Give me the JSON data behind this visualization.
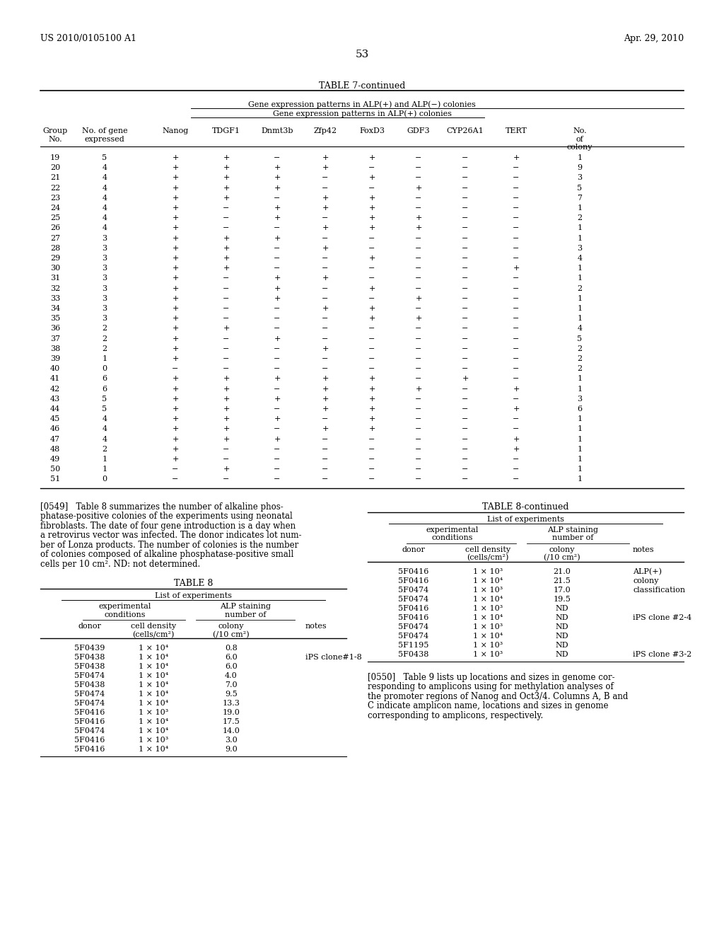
{
  "header_left": "US 2010/0105100 A1",
  "header_right": "Apr. 29, 2010",
  "page_number": "53",
  "table7_title": "TABLE 7-continued",
  "table7_subtitle1": "Gene expression patterns in ALP(+) and ALP(−) colonies",
  "table7_subtitle2": "Gene expression patterns in ALP(+) colonies",
  "table7_data": [
    [
      "19",
      "5",
      "+",
      "+",
      "−",
      "+",
      "+",
      "−",
      "−",
      "+",
      "1"
    ],
    [
      "20",
      "4",
      "+",
      "+",
      "+",
      "+",
      "−",
      "−",
      "−",
      "−",
      "9"
    ],
    [
      "21",
      "4",
      "+",
      "+",
      "+",
      "−",
      "+",
      "−",
      "−",
      "−",
      "3"
    ],
    [
      "22",
      "4",
      "+",
      "+",
      "+",
      "−",
      "−",
      "+",
      "−",
      "−",
      "5"
    ],
    [
      "23",
      "4",
      "+",
      "+",
      "−",
      "+",
      "+",
      "−",
      "−",
      "−",
      "7"
    ],
    [
      "24",
      "4",
      "+",
      "−",
      "+",
      "+",
      "+",
      "−",
      "−",
      "−",
      "1"
    ],
    [
      "25",
      "4",
      "+",
      "−",
      "+",
      "−",
      "+",
      "+",
      "−",
      "−",
      "2"
    ],
    [
      "26",
      "4",
      "+",
      "−",
      "−",
      "+",
      "+",
      "+",
      "−",
      "−",
      "1"
    ],
    [
      "27",
      "3",
      "+",
      "+",
      "+",
      "−",
      "−",
      "−",
      "−",
      "−",
      "1"
    ],
    [
      "28",
      "3",
      "+",
      "+",
      "−",
      "+",
      "−",
      "−",
      "−",
      "−",
      "3"
    ],
    [
      "29",
      "3",
      "+",
      "+",
      "−",
      "−",
      "+",
      "−",
      "−",
      "−",
      "4"
    ],
    [
      "30",
      "3",
      "+",
      "+",
      "−",
      "−",
      "−",
      "−",
      "−",
      "+",
      "1"
    ],
    [
      "31",
      "3",
      "+",
      "−",
      "+",
      "+",
      "−",
      "−",
      "−",
      "−",
      "1"
    ],
    [
      "32",
      "3",
      "+",
      "−",
      "+",
      "−",
      "+",
      "−",
      "−",
      "−",
      "2"
    ],
    [
      "33",
      "3",
      "+",
      "−",
      "+",
      "−",
      "−",
      "+",
      "−",
      "−",
      "1"
    ],
    [
      "34",
      "3",
      "+",
      "−",
      "−",
      "+",
      "+",
      "−",
      "−",
      "−",
      "1"
    ],
    [
      "35",
      "3",
      "+",
      "−",
      "−",
      "−",
      "+",
      "+",
      "−",
      "−",
      "1"
    ],
    [
      "36",
      "2",
      "+",
      "+",
      "−",
      "−",
      "−",
      "−",
      "−",
      "−",
      "4"
    ],
    [
      "37",
      "2",
      "+",
      "−",
      "+",
      "−",
      "−",
      "−",
      "−",
      "−",
      "5"
    ],
    [
      "38",
      "2",
      "+",
      "−",
      "−",
      "+",
      "−",
      "−",
      "−",
      "−",
      "2"
    ],
    [
      "39",
      "1",
      "+",
      "−",
      "−",
      "−",
      "−",
      "−",
      "−",
      "−",
      "2"
    ],
    [
      "40",
      "0",
      "−",
      "−",
      "−",
      "−",
      "−",
      "−",
      "−",
      "−",
      "2"
    ],
    [
      "41",
      "6",
      "+",
      "+",
      "+",
      "+",
      "+",
      "−",
      "+",
      "−",
      "1"
    ],
    [
      "42",
      "6",
      "+",
      "+",
      "−",
      "+",
      "+",
      "+",
      "−",
      "+",
      "1"
    ],
    [
      "43",
      "5",
      "+",
      "+",
      "+",
      "+",
      "+",
      "−",
      "−",
      "−",
      "3"
    ],
    [
      "44",
      "5",
      "+",
      "+",
      "−",
      "+",
      "+",
      "−",
      "−",
      "+",
      "6"
    ],
    [
      "45",
      "4",
      "+",
      "+",
      "+",
      "−",
      "+",
      "−",
      "−",
      "−",
      "1"
    ],
    [
      "46",
      "4",
      "+",
      "+",
      "−",
      "+",
      "+",
      "−",
      "−",
      "−",
      "1"
    ],
    [
      "47",
      "4",
      "+",
      "+",
      "+",
      "−",
      "−",
      "−",
      "−",
      "+",
      "1"
    ],
    [
      "48",
      "2",
      "+",
      "−",
      "−",
      "−",
      "−",
      "−",
      "−",
      "+",
      "1"
    ],
    [
      "49",
      "1",
      "+",
      "−",
      "−",
      "−",
      "−",
      "−",
      "−",
      "−",
      "1"
    ],
    [
      "50",
      "1",
      "−",
      "+",
      "−",
      "−",
      "−",
      "−",
      "−",
      "−",
      "1"
    ],
    [
      "51",
      "0",
      "−",
      "−",
      "−",
      "−",
      "−",
      "−",
      "−",
      "−",
      "1"
    ]
  ],
  "para549_lines": [
    "[0549]   Table 8 summarizes the number of alkaline phos-",
    "phatase-positive colonies of the experiments using neonatal",
    "fibroblasts. The date of four gene introduction is a day when",
    "a retrovirus vector was infected. The donor indicates lot num-",
    "ber of Lonza products. The number of colonies is the number",
    "of colonies composed of alkaline phosphatase-positive small",
    "cells per 10 cm². ND: not determined."
  ],
  "table8_title": "TABLE 8",
  "table8_subtitle": "List of experiments",
  "table8_data": [
    [
      "5F0439",
      "1 × 10⁴",
      "0.8",
      ""
    ],
    [
      "5F0438",
      "1 × 10⁴",
      "6.0",
      "iPS clone#1-8"
    ],
    [
      "5F0438",
      "1 × 10⁴",
      "6.0",
      ""
    ],
    [
      "5F0474",
      "1 × 10⁴",
      "4.0",
      ""
    ],
    [
      "5F0438",
      "1 × 10⁴",
      "7.0",
      ""
    ],
    [
      "5F0474",
      "1 × 10⁴",
      "9.5",
      ""
    ],
    [
      "5F0474",
      "1 × 10⁴",
      "13.3",
      ""
    ],
    [
      "5F0416",
      "1 × 10³",
      "19.0",
      ""
    ],
    [
      "5F0416",
      "1 × 10⁴",
      "17.5",
      ""
    ],
    [
      "5F0474",
      "1 × 10⁴",
      "14.0",
      ""
    ],
    [
      "5F0416",
      "1 × 10³",
      "3.0",
      ""
    ],
    [
      "5F0416",
      "1 × 10⁴",
      "9.0",
      ""
    ]
  ],
  "table8cont_title": "TABLE 8-continued",
  "table8cont_subtitle": "List of experiments",
  "table8cont_data": [
    [
      "5F0416",
      "1 × 10³",
      "21.0",
      "ALP(+)"
    ],
    [
      "5F0416",
      "1 × 10⁴",
      "21.5",
      "colony"
    ],
    [
      "5F0474",
      "1 × 10³",
      "17.0",
      "classification"
    ],
    [
      "5F0474",
      "1 × 10⁴",
      "19.5",
      ""
    ],
    [
      "5F0416",
      "1 × 10³",
      "ND",
      ""
    ],
    [
      "5F0416",
      "1 × 10⁴",
      "ND",
      "iPS clone #2-4"
    ],
    [
      "5F0474",
      "1 × 10³",
      "ND",
      ""
    ],
    [
      "5F0474",
      "1 × 10⁴",
      "ND",
      ""
    ],
    [
      "5F1195",
      "1 × 10³",
      "ND",
      ""
    ],
    [
      "5F0438",
      "1 × 10³",
      "ND",
      "iPS clone #3-2"
    ]
  ],
  "para550_lines": [
    "[0550]   Table 9 lists up locations and sizes in genome cor-",
    "responding to amplicons using for methylation analyses of",
    "the promoter regions of Nanog and Oct3/4. Columns A, B and",
    "C indicate amplicon name, locations and sizes in genome",
    "corresponding to amplicons, respectively."
  ]
}
